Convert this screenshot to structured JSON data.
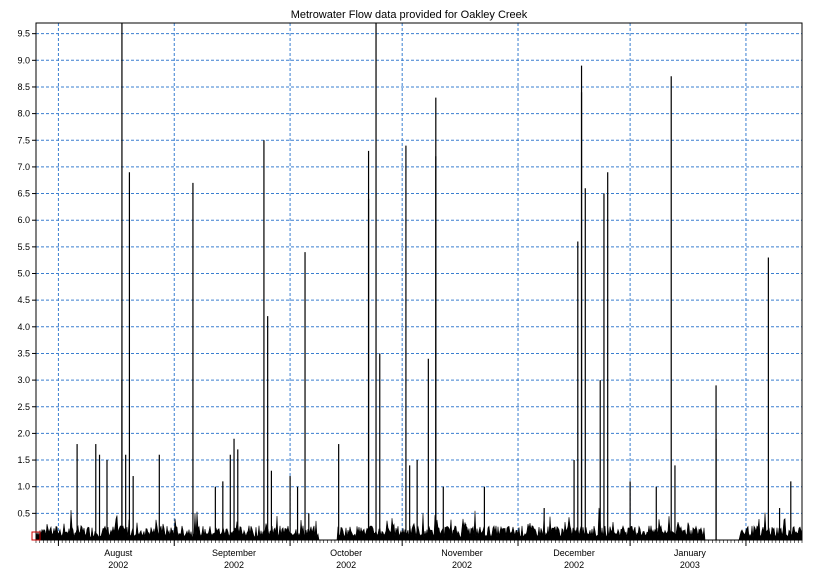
{
  "chart_data": {
    "type": "line",
    "title": "Metrowater Flow data provided for Oakley Creek",
    "xlabel": "",
    "ylabel": "",
    "ylim": [
      0,
      9.7
    ],
    "xlim": [
      "2002-07-10",
      "2003-01-31"
    ],
    "grid": true,
    "legend": "none",
    "colors": {
      "line": "#000000",
      "grid": "#3a7fd0",
      "frame": "#000000",
      "marker": "#cc0000"
    },
    "y_ticks": [
      "0.5",
      "1.0",
      "1.5",
      "2.0",
      "2.5",
      "3.0",
      "3.5",
      "4.0",
      "4.5",
      "5.0",
      "5.5",
      "6.0",
      "6.5",
      "7.0",
      "7.5",
      "8.0",
      "8.5",
      "9.0",
      "9.5"
    ],
    "y_tick_values": [
      0.5,
      1.0,
      1.5,
      2.0,
      2.5,
      3.0,
      3.5,
      4.0,
      4.5,
      5.0,
      5.5,
      6.0,
      6.5,
      7.0,
      7.5,
      8.0,
      8.5,
      9.0,
      9.5
    ],
    "month_grid_dates": [
      "2002-07-16",
      "2002-08-16",
      "2002-09-16",
      "2002-10-16",
      "2002-11-16",
      "2002-12-16",
      "2003-01-16"
    ],
    "x_tick_labels": [
      {
        "month": "August",
        "year": "2002",
        "date": "2002-08-01"
      },
      {
        "month": "September",
        "year": "2002",
        "date": "2002-09-01"
      },
      {
        "month": "October",
        "year": "2002",
        "date": "2002-10-01"
      },
      {
        "month": "November",
        "year": "2002",
        "date": "2002-11-01"
      },
      {
        "month": "December",
        "year": "2002",
        "date": "2002-12-01"
      },
      {
        "month": "January",
        "year": "2003",
        "date": "2003-01-01"
      }
    ],
    "series": [
      {
        "peaks": [
          [
            "2002-07-21",
            1.8
          ],
          [
            "2002-07-26",
            1.8
          ],
          [
            "2002-07-27",
            1.6
          ],
          [
            "2002-07-29",
            1.5
          ],
          [
            "2002-08-02",
            3.0
          ],
          [
            "2002-08-02",
            9.7
          ],
          [
            "2002-08-03",
            1.6
          ],
          [
            "2002-08-04",
            6.9
          ],
          [
            "2002-08-05",
            1.2
          ],
          [
            "2002-08-12",
            1.6
          ],
          [
            "2002-08-21",
            6.7
          ],
          [
            "2002-08-27",
            1.0
          ],
          [
            "2002-08-29",
            1.1
          ],
          [
            "2002-08-31",
            1.6
          ],
          [
            "2002-09-01",
            1.9
          ],
          [
            "2002-09-02",
            1.7
          ],
          [
            "2002-09-09",
            7.5
          ],
          [
            "2002-09-10",
            4.2
          ],
          [
            "2002-09-11",
            1.3
          ],
          [
            "2002-09-16",
            1.2
          ],
          [
            "2002-09-18",
            1.0
          ],
          [
            "2002-09-20",
            5.4
          ],
          [
            "2002-09-21",
            0.5
          ],
          [
            "2002-09-29",
            1.8
          ],
          [
            "2002-10-07",
            7.3
          ],
          [
            "2002-10-07",
            6.4
          ],
          [
            "2002-10-09",
            9.7
          ],
          [
            "2002-10-10",
            3.5
          ],
          [
            "2002-10-17",
            7.4
          ],
          [
            "2002-10-18",
            1.4
          ],
          [
            "2002-10-20",
            1.5
          ],
          [
            "2002-10-23",
            3.4
          ],
          [
            "2002-10-25",
            8.3
          ],
          [
            "2002-10-25",
            7.2
          ],
          [
            "2002-10-27",
            1.0
          ],
          [
            "2002-11-02",
            0.3
          ],
          [
            "2002-11-07",
            1.0
          ],
          [
            "2002-11-23",
            0.6
          ],
          [
            "2002-12-01",
            1.5
          ],
          [
            "2002-12-02",
            5.6
          ],
          [
            "2002-12-03",
            8.9
          ],
          [
            "2002-12-03",
            8.4
          ],
          [
            "2002-12-04",
            6.6
          ],
          [
            "2002-12-08",
            3.0
          ],
          [
            "2002-12-09",
            6.5
          ],
          [
            "2002-12-10",
            6.9
          ],
          [
            "2002-12-16",
            1.1
          ],
          [
            "2002-12-23",
            1.0
          ],
          [
            "2002-12-27",
            8.7
          ],
          [
            "2002-12-28",
            1.4
          ],
          [
            "2003-01-08",
            2.9
          ],
          [
            "2003-01-08",
            1.9
          ],
          [
            "2003-01-22",
            5.3
          ],
          [
            "2003-01-25",
            0.6
          ],
          [
            "2003-01-28",
            1.1
          ]
        ]
      }
    ]
  }
}
